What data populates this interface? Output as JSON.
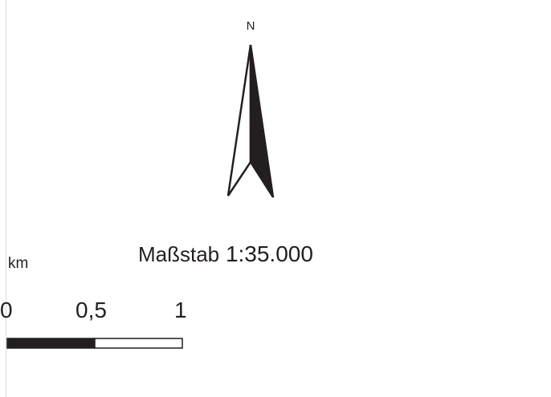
{
  "north_arrow": {
    "letter": "N",
    "fill_color": "#231f20",
    "outline_color": "#231f20"
  },
  "scale": {
    "label_word": "Maßstab",
    "ratio": "1:35.000"
  },
  "scalebar": {
    "unit": "km",
    "ticks": [
      "0",
      "0,5",
      "1"
    ],
    "segments": [
      {
        "from": 0,
        "to": 0.5,
        "fill": "#231f20"
      },
      {
        "from": 0.5,
        "to": 1,
        "fill": "#ffffff"
      }
    ],
    "max": 1
  },
  "colors": {
    "ink": "#231f20",
    "background": "#ffffff",
    "frame": "#d9d9d9"
  }
}
